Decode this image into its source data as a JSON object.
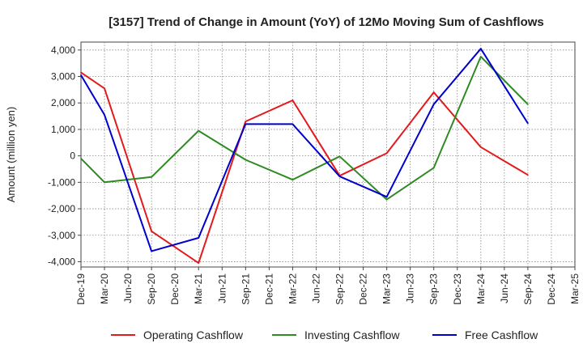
{
  "chart_data": {
    "type": "line",
    "title": "[3157]  Trend of Change in Amount (YoY) of 12Mo Moving Sum of Cashflows",
    "xlabel": "",
    "ylabel": "Amount (million yen)",
    "ylim": [
      -4200,
      4300
    ],
    "yticks": [
      4000,
      3000,
      2000,
      1000,
      0,
      -1000,
      -2000,
      -3000,
      -4000
    ],
    "ytick_labels": [
      "4,000",
      "3,000",
      "2,000",
      "1,000",
      "0",
      "-1,000",
      "-2,000",
      "-3,000",
      "-4,000"
    ],
    "categories": [
      "Dec-19",
      "Mar-20",
      "Jun-20",
      "Sep-20",
      "Dec-20",
      "Mar-21",
      "Jun-21",
      "Sep-21",
      "Dec-21",
      "Mar-22",
      "Jun-22",
      "Sep-22",
      "Dec-22",
      "Mar-23",
      "Jun-23",
      "Sep-23",
      "Dec-23",
      "Mar-24",
      "Jun-24",
      "Sep-24",
      "Dec-24",
      "Mar-25"
    ],
    "grid": true,
    "legend_position": "bottom",
    "series": [
      {
        "name": "Operating Cashflow",
        "color": "#e31a1c",
        "values": [
          3150,
          2550,
          null,
          -2850,
          null,
          -4050,
          null,
          1300,
          null,
          2100,
          null,
          -750,
          null,
          100,
          null,
          2400,
          null,
          330,
          null,
          -720,
          null,
          null
        ]
      },
      {
        "name": "Investing Cashflow",
        "color": "#2e8b22",
        "values": [
          -100,
          -1000,
          null,
          -800,
          null,
          950,
          null,
          -150,
          null,
          -900,
          null,
          -20,
          null,
          -1650,
          null,
          -450,
          null,
          3750,
          null,
          1950,
          null,
          null
        ]
      },
      {
        "name": "Free Cashflow",
        "color": "#0000cc",
        "values": [
          3050,
          1550,
          null,
          -3600,
          null,
          -3100,
          null,
          1200,
          null,
          1200,
          null,
          -780,
          null,
          -1550,
          null,
          1950,
          null,
          4050,
          null,
          1230,
          null,
          null
        ]
      }
    ]
  }
}
